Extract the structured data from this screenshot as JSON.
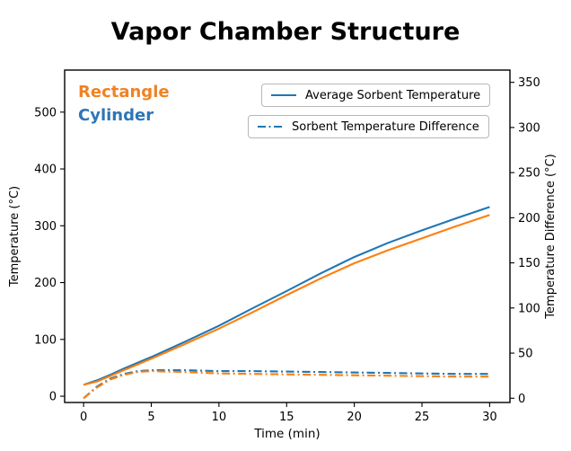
{
  "title": "Vapor Chamber Structure",
  "annotations": [
    {
      "label": "Rectangle",
      "color": "#f08223"
    },
    {
      "label": "Cylinder",
      "color": "#2e75b6"
    }
  ],
  "legend": [
    {
      "label": "Average Sorbent Temperature",
      "style": "solid",
      "color": "#1f77b4"
    },
    {
      "label": "Sorbent Temperature Difference",
      "style": "dashdot",
      "color": "#1f77b4"
    }
  ],
  "chart_data": {
    "type": "line",
    "title": "Vapor Chamber Structure",
    "xlabel": "Time (min)",
    "x_ticks": [
      0,
      5,
      10,
      15,
      20,
      25,
      30
    ],
    "xlim": [
      -1.4,
      31.5
    ],
    "grid": false,
    "left_axis": {
      "label": "Temperature (°C)",
      "ticks": [
        0,
        100,
        200,
        300,
        400,
        500
      ],
      "lim": [
        -11,
        574
      ]
    },
    "right_axis": {
      "label": "Temperature Difference (°C)",
      "ticks": [
        0,
        50,
        100,
        150,
        200,
        250,
        300,
        350
      ],
      "lim": [
        -4.7,
        363.6
      ]
    },
    "x": [
      0,
      1,
      2,
      3,
      4,
      5,
      7.5,
      10,
      12.5,
      15,
      17.5,
      20,
      22.5,
      25,
      27.5,
      30
    ],
    "series": [
      {
        "name": "Cylinder Average Sorbent Temperature",
        "axis": "left",
        "style": "solid",
        "color": "#1f77b4",
        "values": [
          20,
          28,
          38,
          49,
          59,
          69,
          96,
          124,
          155,
          185,
          216,
          245,
          270,
          292,
          313,
          333
        ]
      },
      {
        "name": "Rectangle Average Sorbent Temperature",
        "axis": "left",
        "style": "solid",
        "color": "#ff7f0e",
        "values": [
          20,
          26,
          36,
          46,
          56,
          66,
          92,
          119,
          148,
          178,
          207,
          234,
          257,
          278,
          299,
          319
        ]
      },
      {
        "name": "Cylinder Sorbent Temperature Difference",
        "axis": "right",
        "style": "dashdot",
        "color": "#1f77b4",
        "values": [
          0,
          13,
          22,
          27,
          30,
          31,
          31,
          30,
          30,
          29.5,
          29,
          28.5,
          28,
          27.5,
          27,
          27
        ]
      },
      {
        "name": "Rectangle Sorbent Temperature Difference",
        "axis": "right",
        "style": "dashdot",
        "color": "#ff7f0e",
        "values": [
          0,
          12,
          21,
          26,
          29,
          30,
          29,
          27.5,
          27,
          26.5,
          26,
          25.5,
          25,
          24.5,
          24,
          24
        ]
      }
    ]
  }
}
